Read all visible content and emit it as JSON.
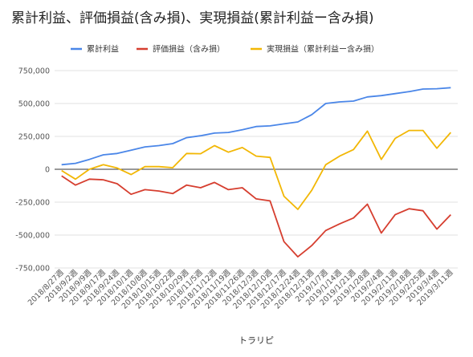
{
  "chart_data": {
    "type": "line",
    "title": "累計利益、評価損益(含み損)、実現損益(累計利益ー含み損)",
    "xlabel": "トラリピ",
    "ylabel": "",
    "ylim": [
      -750000,
      750000
    ],
    "yticks": [
      750000,
      500000,
      250000,
      0,
      -250000,
      -500000,
      -750000
    ],
    "ytick_labels": [
      "750,000",
      "500,000",
      "250,000",
      "0",
      "-250,000",
      "-500,000",
      "-750,000"
    ],
    "grid": true,
    "legend_position": "top",
    "categories": [
      "2018/8/27週",
      "2018/9/2週",
      "2018/9/9週",
      "2018/9/17週",
      "2018/9/24週",
      "2018/10/1週",
      "2018/10/8週",
      "2018/10/15週",
      "2018/10/22週",
      "2018/10/29週",
      "2018/11/5週",
      "2018/11/12週",
      "2018/11/19週",
      "2018/11/26週",
      "2018/12/3週",
      "2018/12/10週",
      "2018/12/17週",
      "2018/12/24週",
      "2018/12/31週",
      "2019/1/7週",
      "2019/1/14週",
      "2019/1/21週",
      "2019/1/28週",
      "2019/2/4週",
      "2019/2/11週",
      "2019/2/18週",
      "2019/2/25週",
      "2019/3/4週",
      "2019/3/11週"
    ],
    "series": [
      {
        "name": "累計利益",
        "color": "#4a86e8",
        "values": [
          35000,
          45000,
          75000,
          110000,
          120000,
          145000,
          170000,
          180000,
          195000,
          240000,
          255000,
          275000,
          280000,
          300000,
          325000,
          330000,
          345000,
          360000,
          415000,
          500000,
          512000,
          518000,
          550000,
          560000,
          575000,
          590000,
          610000,
          612000,
          620000
        ]
      },
      {
        "name": "評価損益（含み損）",
        "color": "#d63e2f",
        "values": [
          -50000,
          -120000,
          -75000,
          -80000,
          -110000,
          -190000,
          -155000,
          -165000,
          -185000,
          -120000,
          -140000,
          -100000,
          -155000,
          -140000,
          -225000,
          -240000,
          -550000,
          -665000,
          -580000,
          -465000,
          -415000,
          -370000,
          -265000,
          -485000,
          -345000,
          -300000,
          -315000,
          -455000,
          -345000
        ]
      },
      {
        "name": "実現損益（累計利益ー含み損）",
        "color": "#f2b705",
        "values": [
          -10000,
          -75000,
          0,
          35000,
          10000,
          -40000,
          20000,
          20000,
          12000,
          120000,
          118000,
          180000,
          130000,
          165000,
          100000,
          90000,
          -205000,
          -305000,
          -160000,
          35000,
          100000,
          150000,
          290000,
          75000,
          235000,
          295000,
          295000,
          160000,
          280000
        ]
      }
    ]
  }
}
